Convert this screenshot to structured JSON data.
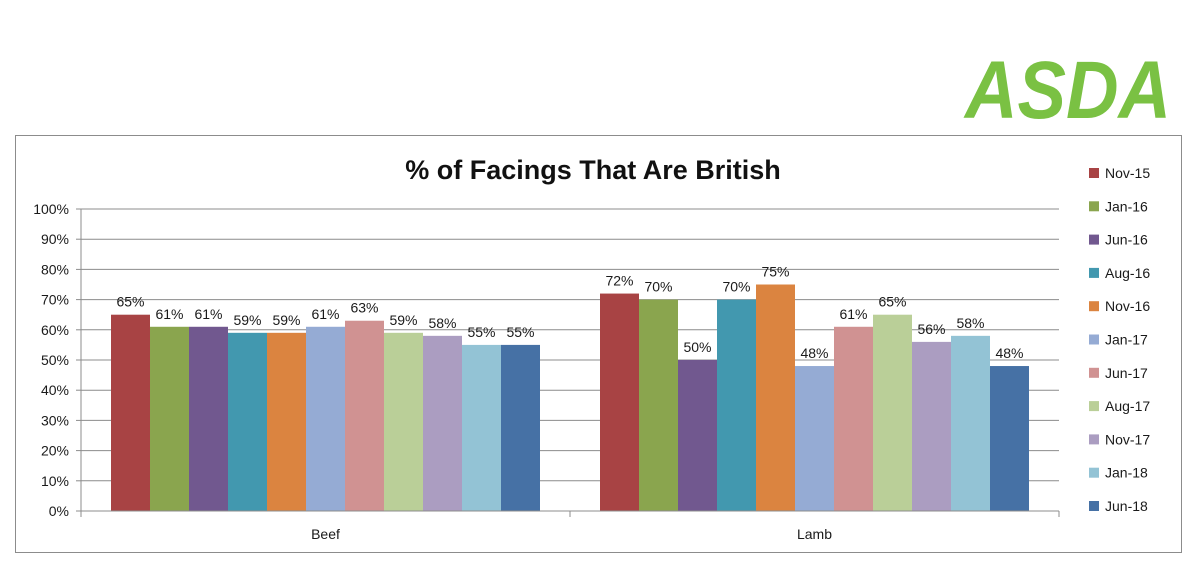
{
  "brand": {
    "name": "ASDA",
    "color": "#7ac143"
  },
  "chart_data": {
    "type": "bar",
    "title": "% of Facings That Are British",
    "xlabel": "",
    "ylabel": "",
    "ylim": [
      0,
      100
    ],
    "yticks": [
      "0%",
      "10%",
      "20%",
      "30%",
      "40%",
      "50%",
      "60%",
      "70%",
      "80%",
      "90%",
      "100%"
    ],
    "grid": true,
    "legend_position": "right",
    "categories": [
      "Beef",
      "Lamb"
    ],
    "series": [
      {
        "name": "Nov-15",
        "color": "#a84344",
        "values": [
          65,
          72
        ],
        "labels": [
          "65%",
          "72%"
        ]
      },
      {
        "name": "Jan-16",
        "color": "#8aa54e",
        "values": [
          61,
          70
        ],
        "labels": [
          "61%",
          "70%"
        ]
      },
      {
        "name": "Jun-16",
        "color": "#71588f",
        "values": [
          61,
          50
        ],
        "labels": [
          "61%",
          "50%"
        ]
      },
      {
        "name": "Aug-16",
        "color": "#4298af",
        "values": [
          59,
          70
        ],
        "labels": [
          "59%",
          "70%"
        ]
      },
      {
        "name": "Nov-16",
        "color": "#db8440",
        "values": [
          59,
          75
        ],
        "labels": [
          "59%",
          "75%"
        ]
      },
      {
        "name": "Jan-17",
        "color": "#95abd4",
        "values": [
          61,
          48
        ],
        "labels": [
          "61%",
          "48%"
        ]
      },
      {
        "name": "Jun-17",
        "color": "#d09292",
        "values": [
          63,
          61
        ],
        "labels": [
          "63%",
          "61%"
        ]
      },
      {
        "name": "Aug-17",
        "color": "#bacf98",
        "values": [
          59,
          65
        ],
        "labels": [
          "59%",
          "65%"
        ]
      },
      {
        "name": "Nov-17",
        "color": "#ab9dc1",
        "values": [
          58,
          56
        ],
        "labels": [
          "58%",
          "56%"
        ]
      },
      {
        "name": "Jan-18",
        "color": "#93c3d5",
        "values": [
          55,
          58
        ],
        "labels": [
          "55%",
          "58%"
        ]
      },
      {
        "name": "Jun-18",
        "color": "#4671a5",
        "values": [
          55,
          48
        ],
        "labels": [
          "55%",
          "48%"
        ]
      }
    ]
  }
}
